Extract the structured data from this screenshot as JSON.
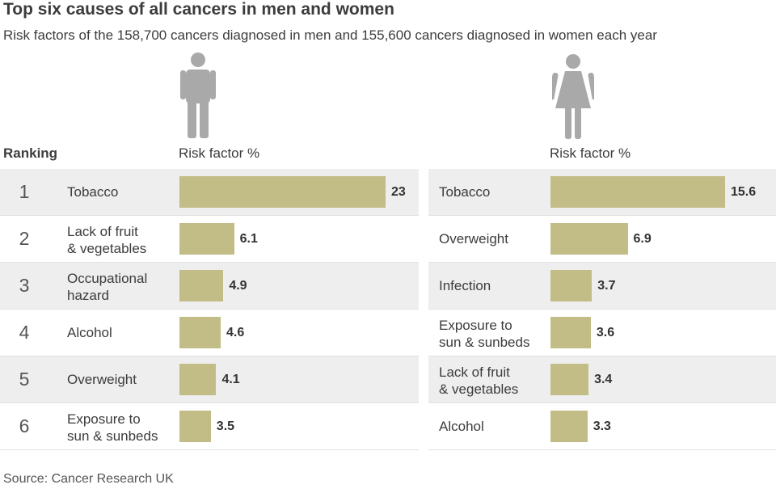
{
  "title": "Top six causes of all cancers in men and women",
  "subtitle": "Risk factors of the 158,700 cancers diagnosed in men and 155,600 cancers diagnosed in women each year",
  "ranking_label": "Ranking",
  "men_header": "Risk factor %",
  "women_header": "Risk factor %",
  "source": "Source: Cancer Research UK",
  "colors": {
    "bar": "#c2bd87",
    "row_shade": "#eeeeee",
    "icon": "#a9a9a9"
  },
  "icons": {
    "men": "man-icon",
    "women": "woman-icon"
  },
  "chart_data": [
    {
      "type": "bar",
      "orientation": "horizontal",
      "ranks": [
        "1",
        "2",
        "3",
        "4",
        "5",
        "6"
      ],
      "categories": [
        [
          "Tobacco"
        ],
        [
          "Lack of fruit",
          "& vegetables"
        ],
        [
          "Occupational",
          "hazard"
        ],
        [
          "Alcohol"
        ],
        [
          "Overweight"
        ],
        [
          "Exposure to",
          "sun & sunbeds"
        ]
      ],
      "values": [
        23,
        6.1,
        4.9,
        4.6,
        4.1,
        3.5
      ],
      "value_labels": [
        "23",
        "6.1",
        "4.9",
        "4.6",
        "4.1",
        "3.5"
      ],
      "ylabel": "Risk factor %"
    },
    {
      "type": "bar",
      "orientation": "horizontal",
      "categories": [
        [
          "Tobacco"
        ],
        [
          "Overweight"
        ],
        [
          "Infection"
        ],
        [
          "Exposure to",
          "sun & sunbeds"
        ],
        [
          "Lack of fruit",
          "& vegetables"
        ],
        [
          "Alcohol"
        ]
      ],
      "values": [
        15.6,
        6.9,
        3.7,
        3.6,
        3.4,
        3.3
      ],
      "value_labels": [
        "15.6",
        "6.9",
        "3.7",
        "3.6",
        "3.4",
        "3.3"
      ],
      "ylabel": "Risk factor %"
    }
  ]
}
